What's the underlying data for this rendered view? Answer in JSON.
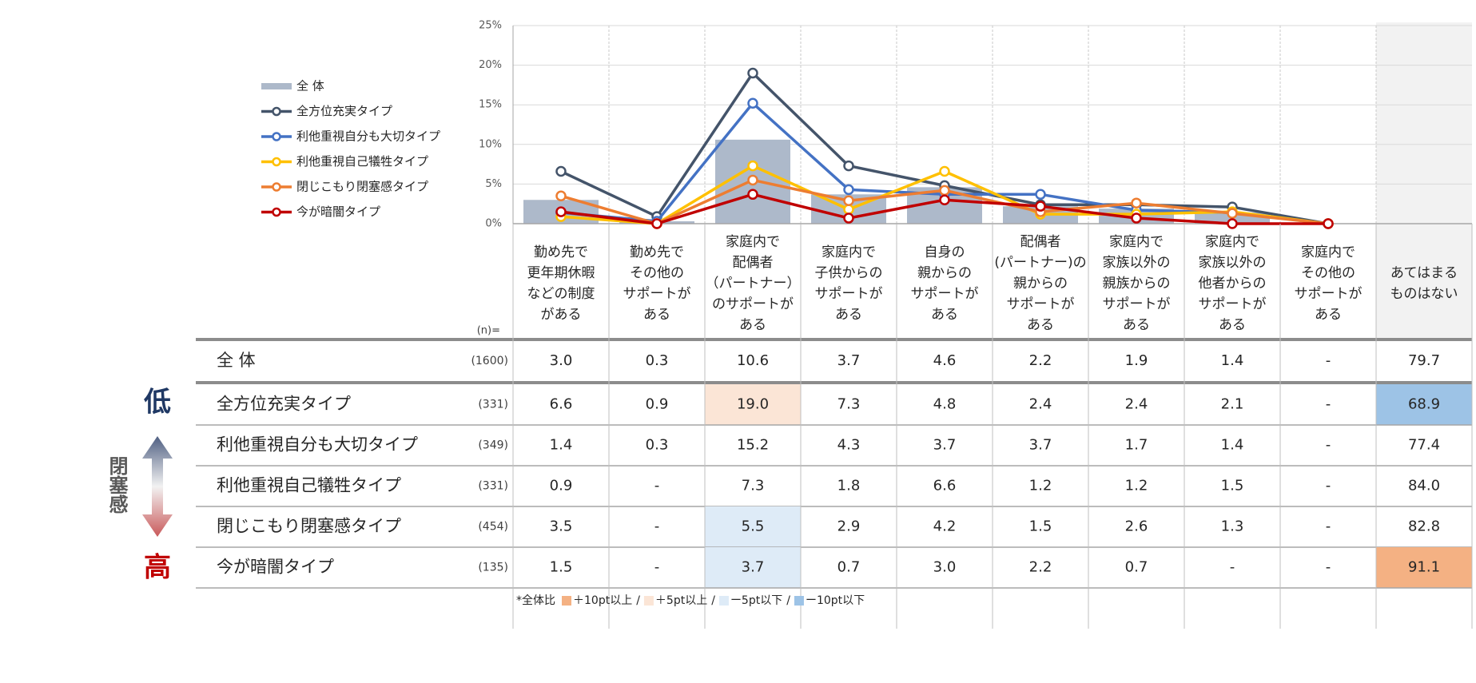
{
  "chart_data": {
    "type": "bar-line",
    "categories": [
      [
        "勤め先で",
        "更年期休暇",
        "などの制度",
        "がある"
      ],
      [
        "勤め先で",
        "その他の",
        "サポートが",
        "ある"
      ],
      [
        "家庭内で",
        "配偶者",
        "（パートナー）",
        "のサポートが",
        "ある"
      ],
      [
        "家庭内で",
        "子供からの",
        "サポートが",
        "ある"
      ],
      [
        "自身の",
        "親からの",
        "サポートが",
        "ある"
      ],
      [
        "配偶者",
        "(パートナー)の",
        "親からの",
        "サポートが",
        "ある"
      ],
      [
        "家庭内で",
        "家族以外の",
        "親族からの",
        "サポートが",
        "ある"
      ],
      [
        "家庭内で",
        "家族以外の",
        "他者からの",
        "サポートが",
        "ある"
      ],
      [
        "家庭内で",
        "その他の",
        "サポートが",
        "ある"
      ],
      [
        "あてはまる",
        "ものはない"
      ]
    ],
    "series": [
      {
        "name": "全 体",
        "kind": "bar",
        "color": "#adb9ca",
        "values": [
          3.0,
          0.3,
          10.6,
          3.7,
          4.6,
          2.2,
          1.9,
          1.4,
          0,
          null
        ]
      },
      {
        "name": "全方位充実タイプ",
        "kind": "line",
        "color": "#44546a",
        "values": [
          6.6,
          0.9,
          19.0,
          7.3,
          4.8,
          2.4,
          2.4,
          2.1,
          0,
          null
        ]
      },
      {
        "name": "利他重視自分も大切タイプ",
        "kind": "line",
        "color": "#4472c4",
        "values": [
          1.4,
          0.3,
          15.2,
          4.3,
          3.7,
          3.7,
          1.7,
          1.4,
          0,
          null
        ]
      },
      {
        "name": "利他重視自己犠牲タイプ",
        "kind": "line",
        "color": "#ffc000",
        "values": [
          0.9,
          0,
          7.3,
          1.8,
          6.6,
          1.2,
          1.2,
          1.5,
          0,
          null
        ]
      },
      {
        "name": "閉じこもり閉塞感タイプ",
        "kind": "line",
        "color": "#ed7d31",
        "values": [
          3.5,
          0,
          5.5,
          2.9,
          4.2,
          1.5,
          2.6,
          1.3,
          0,
          null
        ]
      },
      {
        "name": "今が暗闇タイプ",
        "kind": "line",
        "color": "#c00000",
        "values": [
          1.5,
          0,
          3.7,
          0.7,
          3.0,
          2.2,
          0.7,
          0,
          0,
          null
        ]
      }
    ],
    "ylim": [
      0,
      25
    ],
    "yticks": [
      {
        "value": 0,
        "label": "0%"
      },
      {
        "value": 5,
        "label": "5%"
      },
      {
        "value": 10,
        "label": "10%"
      },
      {
        "value": 15,
        "label": "15%"
      },
      {
        "value": 20,
        "label": "20%"
      },
      {
        "value": 25,
        "label": "25%"
      }
    ],
    "grid": true,
    "shaded_color": "#f2f2f2"
  },
  "table": {
    "n_label": "(n)=",
    "rows": [
      {
        "label": "全 体",
        "n": "(1600)",
        "cells": [
          "3.0",
          "0.3",
          "10.6",
          "3.7",
          "4.6",
          "2.2",
          "1.9",
          "1.4",
          "-",
          "79.7"
        ],
        "highlight": {}
      },
      {
        "label": "全方位充実タイプ",
        "n": "(331)",
        "cells": [
          "6.6",
          "0.9",
          "19.0",
          "7.3",
          "4.8",
          "2.4",
          "2.4",
          "2.1",
          "-",
          "68.9"
        ],
        "highlight": {
          "2": "#fbe5d6",
          "9": "#9dc3e6"
        }
      },
      {
        "label": "利他重視自分も大切タイプ",
        "n": "(349)",
        "cells": [
          "1.4",
          "0.3",
          "15.2",
          "4.3",
          "3.7",
          "3.7",
          "1.7",
          "1.4",
          "-",
          "77.4"
        ],
        "highlight": {}
      },
      {
        "label": "利他重視自己犠牲タイプ",
        "n": "(331)",
        "cells": [
          "0.9",
          "-",
          "7.3",
          "1.8",
          "6.6",
          "1.2",
          "1.2",
          "1.5",
          "-",
          "84.0"
        ],
        "highlight": {}
      },
      {
        "label": "閉じこもり閉塞感タイプ",
        "n": "(454)",
        "cells": [
          "3.5",
          "-",
          "5.5",
          "2.9",
          "4.2",
          "1.5",
          "2.6",
          "1.3",
          "-",
          "82.8"
        ],
        "highlight": {
          "2": "#deebf7"
        }
      },
      {
        "label": "今が暗闇タイプ",
        "n": "(135)",
        "cells": [
          "1.5",
          "-",
          "3.7",
          "0.7",
          "3.0",
          "2.2",
          "0.7",
          "-",
          "-",
          "91.1"
        ],
        "highlight": {
          "2": "#deebf7",
          "9": "#f4b183"
        }
      }
    ]
  },
  "footnote": {
    "prefix": "*全体比",
    "separator": "/",
    "items": [
      {
        "color": "#f4b183",
        "label": "＋10pt以上"
      },
      {
        "color": "#fbe5d6",
        "label": "＋5pt以上"
      },
      {
        "color": "#deebf7",
        "label": "ー5pt以下"
      },
      {
        "color": "#9dc3e6",
        "label": "ー10pt以下"
      }
    ]
  },
  "side": {
    "low": "低",
    "label": "閉塞感",
    "high": "高"
  }
}
